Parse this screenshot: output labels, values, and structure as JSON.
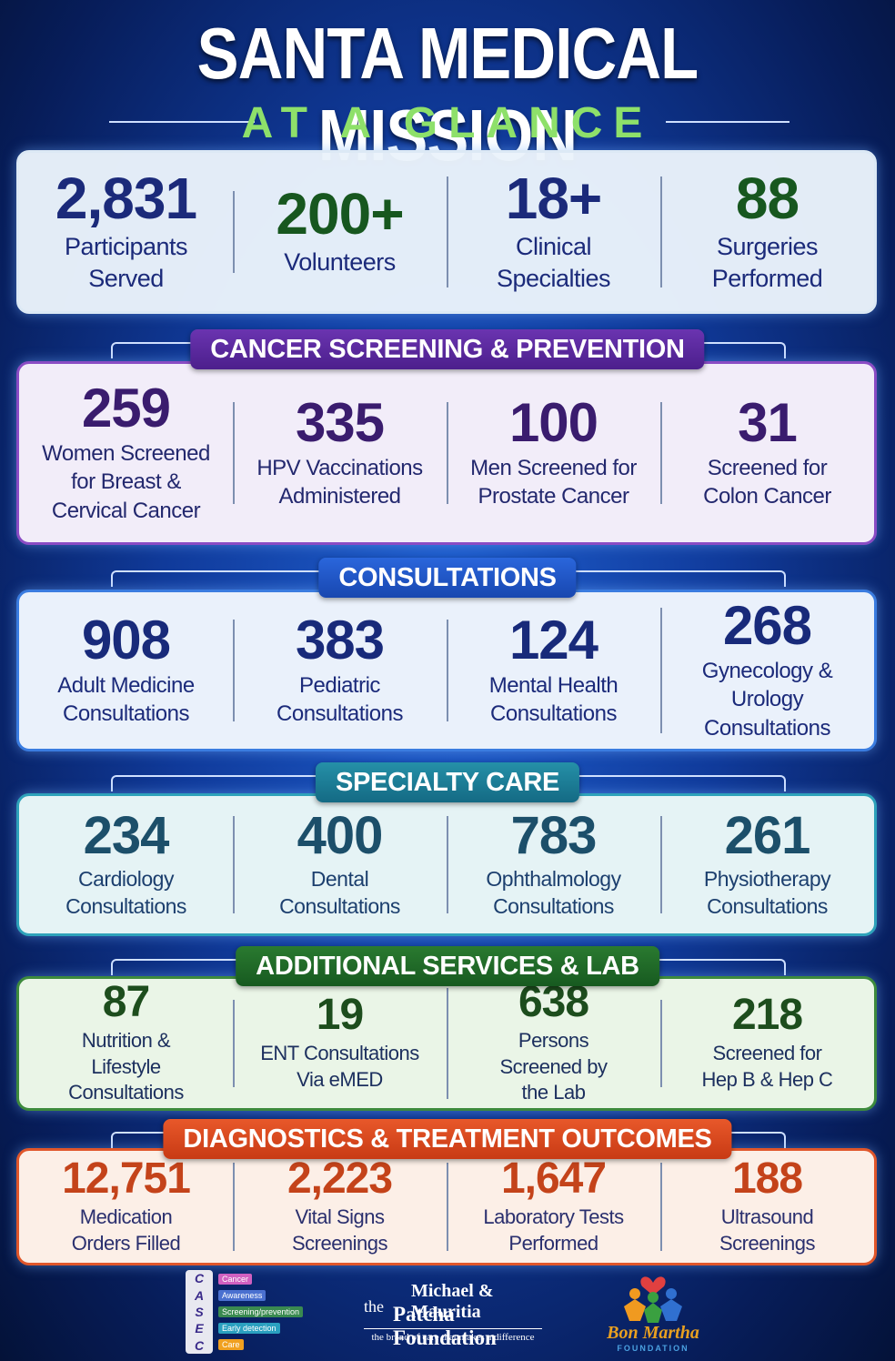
{
  "header": {
    "title": "SANTA MEDICAL MISSION",
    "subtitle": "AT A GLANCE"
  },
  "sections": [
    {
      "stats": [
        {
          "value": "2,831",
          "label": [
            "Participants",
            "Served"
          ]
        },
        {
          "value": "200+",
          "label": [
            "Volunteers"
          ]
        },
        {
          "value": "18+",
          "label": [
            "Clinical",
            "Specialties"
          ]
        },
        {
          "value": "88",
          "label": [
            "Surgeries",
            "Performed"
          ]
        }
      ]
    },
    {
      "title": "CANCER SCREENING & PREVENTION",
      "stats": [
        {
          "value": "259",
          "label": [
            "Women Screened",
            "for Breast &",
            "Cervical Cancer"
          ]
        },
        {
          "value": "335",
          "label": [
            "HPV Vaccinations",
            "Administered"
          ]
        },
        {
          "value": "100",
          "label": [
            "Men Screened for",
            "Prostate Cancer"
          ]
        },
        {
          "value": "31",
          "label": [
            "Screened for",
            "Colon Cancer"
          ]
        }
      ]
    },
    {
      "title": "CONSULTATIONS",
      "stats": [
        {
          "value": "908",
          "label": [
            "Adult Medicine",
            "Consultations"
          ]
        },
        {
          "value": "383",
          "label": [
            "Pediatric",
            "Consultations"
          ]
        },
        {
          "value": "124",
          "label": [
            "Mental Health",
            "Consultations"
          ]
        },
        {
          "value": "268",
          "label": [
            "Gynecology &",
            "Urology",
            "Consultations"
          ]
        }
      ]
    },
    {
      "title": "SPECIALTY CARE",
      "stats": [
        {
          "value": "234",
          "label": [
            "Cardiology",
            "Consultations"
          ]
        },
        {
          "value": "400",
          "label": [
            "Dental",
            "Consultations"
          ]
        },
        {
          "value": "783",
          "label": [
            "Ophthalmology",
            "Consultations"
          ]
        },
        {
          "value": "261",
          "label": [
            "Physiotherapy",
            "Consultations"
          ]
        }
      ]
    },
    {
      "title": "ADDITIONAL SERVICES & LAB",
      "stats": [
        {
          "value": "87",
          "label": [
            "Nutrition &",
            "Lifestyle",
            "Consultations"
          ]
        },
        {
          "value": "19",
          "label": [
            "ENT Consultations",
            "Via eMED"
          ]
        },
        {
          "value": "638",
          "label": [
            "Persons",
            "Screened by",
            "the Lab"
          ]
        },
        {
          "value": "218",
          "label": [
            "Screened for",
            "Hep B & Hep C"
          ]
        }
      ]
    },
    {
      "title": "DIAGNOSTICS & TREATMENT OUTCOMES",
      "stats": [
        {
          "value": "12,751",
          "label": [
            "Medication",
            "Orders Filled"
          ]
        },
        {
          "value": "2,223",
          "label": [
            "Vital Signs",
            "Screenings"
          ]
        },
        {
          "value": "1,647",
          "label": [
            "Laboratory Tests",
            "Performed"
          ]
        },
        {
          "value": "188",
          "label": [
            "Ultrasound",
            "Screenings"
          ]
        }
      ]
    }
  ],
  "footer": {
    "casec": {
      "letters": [
        "C",
        "A",
        "S",
        "E",
        "C"
      ],
      "items": [
        "Cancer",
        "Awareness",
        "Screening/prevention",
        "Early detection",
        "Care"
      ]
    },
    "patcha": {
      "prefix": "the",
      "names": "Michael & Mauritia",
      "name": "Patcha Foundation",
      "tagline": "the brand of care that makes a difference"
    },
    "bonmartha": {
      "name": "Bon Martha",
      "sub": "FOUNDATION"
    }
  }
}
